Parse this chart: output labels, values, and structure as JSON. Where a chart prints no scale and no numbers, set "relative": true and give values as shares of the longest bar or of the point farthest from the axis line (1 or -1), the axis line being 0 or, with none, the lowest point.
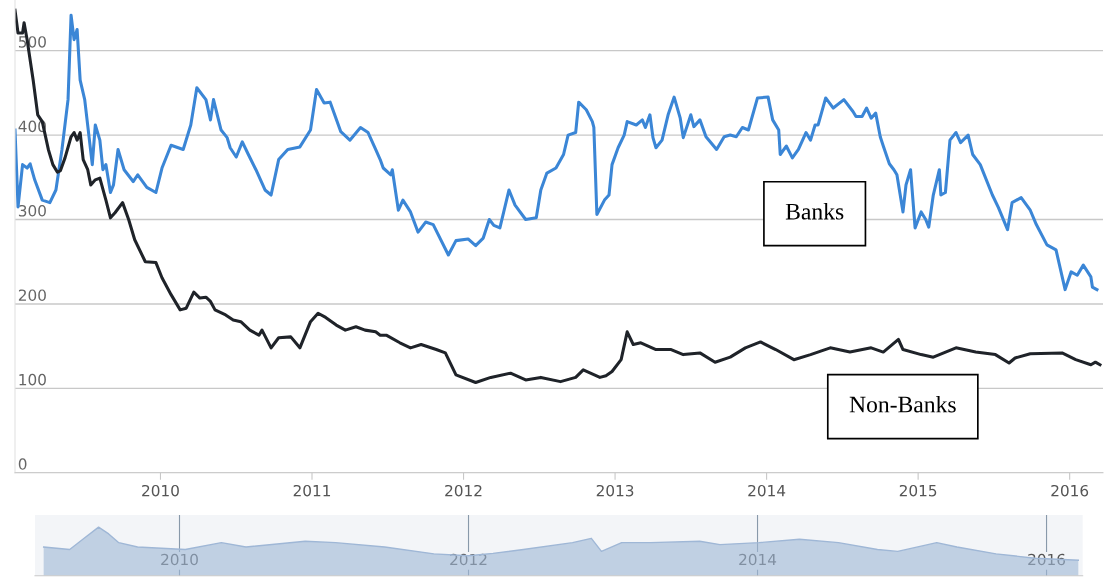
{
  "chart_data": [
    {
      "type": "line",
      "xlim": [
        2009.04,
        2016.22
      ],
      "xticks": [
        2010,
        2011,
        2012,
        2013,
        2014,
        2015,
        2016
      ],
      "ylim": [
        0,
        560
      ],
      "yticks": [
        0,
        100,
        200,
        300,
        400,
        500
      ],
      "grid": "y",
      "series": [
        {
          "name": "Banks",
          "color": "#3b86d6",
          "x": [
            2009.04,
            2009.06,
            2009.09,
            2009.12,
            2009.14,
            2009.17,
            2009.22,
            2009.27,
            2009.31,
            2009.35,
            2009.39,
            2009.41,
            2009.43,
            2009.45,
            2009.47,
            2009.5,
            2009.55,
            2009.57,
            2009.6,
            2009.62,
            2009.64,
            2009.67,
            2009.69,
            2009.72,
            2009.76,
            2009.82,
            2009.85,
            2009.91,
            2009.97,
            2010.01,
            2010.07,
            2010.15,
            2010.2,
            2010.24,
            2010.3,
            2010.33,
            2010.35,
            2010.4,
            2010.44,
            2010.46,
            2010.5,
            2010.54,
            2010.58,
            2010.63,
            2010.69,
            2010.73,
            2010.78,
            2010.84,
            2010.92,
            2010.99,
            2011.03,
            2011.08,
            2011.12,
            2011.19,
            2011.25,
            2011.32,
            2011.37,
            2011.42,
            2011.45,
            2011.47,
            2011.52,
            2011.53,
            2011.57,
            2011.6,
            2011.65,
            2011.7,
            2011.75,
            2011.8,
            2011.9,
            2011.95,
            2012.03,
            2012.08,
            2012.13,
            2012.17,
            2012.2,
            2012.24,
            2012.3,
            2012.34,
            2012.41,
            2012.48,
            2012.51,
            2012.55,
            2012.61,
            2012.66,
            2012.69,
            2012.74,
            2012.76,
            2012.81,
            2012.85,
            2012.86,
            2012.88,
            2012.93,
            2012.96,
            2012.98,
            2013.02,
            2013.06,
            2013.08,
            2013.14,
            2013.18,
            2013.2,
            2013.23,
            2013.25,
            2013.27,
            2013.31,
            2013.35,
            2013.39,
            2013.43,
            2013.45,
            2013.5,
            2013.52,
            2013.56,
            2013.6,
            2013.67,
            2013.72,
            2013.76,
            2013.8,
            2013.84,
            2013.88,
            2013.94,
            2014.01,
            2014.04,
            2014.08,
            2014.09,
            2014.13,
            2014.17,
            2014.21,
            2014.26,
            2014.29,
            2014.32,
            2014.34,
            2014.39,
            2014.44,
            2014.51,
            2014.57,
            2014.59,
            2014.63,
            2014.66,
            2014.69,
            2014.72,
            2014.75,
            2014.77,
            2014.81,
            2014.84,
            2014.86,
            2014.9,
            2014.92,
            2014.95,
            2014.98,
            2015.02,
            2015.05,
            2015.07,
            2015.1,
            2015.14,
            2015.15,
            2015.18,
            2015.21,
            2015.25,
            2015.28,
            2015.33,
            2015.36,
            2015.41,
            2015.49,
            2015.53,
            2015.59,
            2015.62,
            2015.68,
            2015.74,
            2015.78,
            2015.85,
            2015.91,
            2015.97,
            2016.01,
            2016.05,
            2016.09,
            2016.14,
            2016.15,
            2016.18
          ],
          "values": [
            406,
            315,
            365,
            361,
            366,
            347,
            323,
            320,
            335,
            383,
            442,
            542,
            513,
            525,
            465,
            442,
            365,
            412,
            394,
            359,
            365,
            332,
            341,
            383,
            359,
            345,
            353,
            338,
            332,
            361,
            388,
            383,
            412,
            456,
            442,
            418,
            442,
            406,
            397,
            385,
            374,
            392,
            377,
            359,
            335,
            329,
            371,
            383,
            386,
            406,
            454,
            438,
            439,
            404,
            394,
            409,
            403,
            383,
            371,
            361,
            353,
            359,
            311,
            323,
            309,
            285,
            297,
            294,
            258,
            275,
            277,
            269,
            278,
            300,
            293,
            290,
            335,
            317,
            300,
            302,
            335,
            355,
            361,
            377,
            400,
            403,
            439,
            430,
            416,
            409,
            306,
            323,
            329,
            365,
            385,
            400,
            416,
            412,
            418,
            409,
            424,
            397,
            385,
            394,
            424,
            445,
            420,
            397,
            424,
            410,
            418,
            398,
            383,
            398,
            400,
            398,
            409,
            406,
            444,
            445,
            418,
            406,
            377,
            387,
            373,
            383,
            403,
            394,
            412,
            412,
            444,
            432,
            442,
            428,
            422,
            422,
            432,
            420,
            426,
            398,
            387,
            366,
            359,
            353,
            309,
            341,
            359,
            290,
            309,
            300,
            291,
            329,
            359,
            329,
            332,
            394,
            403,
            391,
            400,
            377,
            365,
            329,
            314,
            288,
            320,
            326,
            311,
            294,
            270,
            264,
            217,
            238,
            234,
            246,
            232,
            220,
            217
          ]
        },
        {
          "name": "Non-Banks",
          "color": "#1f2329",
          "x": [
            2009.04,
            2009.06,
            2009.09,
            2009.1,
            2009.12,
            2009.16,
            2009.19,
            2009.22,
            2009.26,
            2009.29,
            2009.32,
            2009.34,
            2009.37,
            2009.41,
            2009.43,
            2009.45,
            2009.47,
            2009.49,
            2009.52,
            2009.54,
            2009.57,
            2009.6,
            2009.64,
            2009.67,
            2009.7,
            2009.75,
            2009.79,
            2009.83,
            2009.9,
            2009.97,
            2010.01,
            2010.07,
            2010.13,
            2010.17,
            2010.22,
            2010.26,
            2010.3,
            2010.33,
            2010.36,
            2010.43,
            2010.48,
            2010.53,
            2010.59,
            2010.65,
            2010.67,
            2010.73,
            2010.78,
            2010.86,
            2010.92,
            2010.99,
            2011.04,
            2011.09,
            2011.16,
            2011.22,
            2011.29,
            2011.35,
            2011.42,
            2011.45,
            2011.49,
            2011.58,
            2011.65,
            2011.72,
            2011.82,
            2011.88,
            2011.95,
            2012.08,
            2012.18,
            2012.31,
            2012.41,
            2012.51,
            2012.64,
            2012.74,
            2012.79,
            2012.9,
            2012.94,
            2012.98,
            2013.04,
            2013.08,
            2013.12,
            2013.17,
            2013.27,
            2013.37,
            2013.45,
            2013.56,
            2013.66,
            2013.76,
            2013.86,
            2013.96,
            2014.06,
            2014.18,
            2014.29,
            2014.42,
            2014.55,
            2014.69,
            2014.77,
            2014.87,
            2014.9,
            2015.02,
            2015.1,
            2015.25,
            2015.38,
            2015.51,
            2015.6,
            2015.64,
            2015.74,
            2015.95,
            2016.04,
            2016.14,
            2016.17,
            2016.2
          ],
          "values": [
            548,
            521,
            521,
            533,
            513,
            465,
            424,
            416,
            383,
            365,
            356,
            358,
            373,
            398,
            403,
            394,
            403,
            371,
            359,
            341,
            347,
            349,
            323,
            302,
            308,
            320,
            300,
            276,
            250,
            249,
            231,
            211,
            193,
            195,
            214,
            207,
            208,
            203,
            193,
            187,
            181,
            179,
            169,
            163,
            169,
            148,
            160,
            161,
            148,
            179,
            189,
            184,
            175,
            169,
            173,
            169,
            167,
            163,
            163,
            154,
            148,
            152,
            146,
            142,
            116,
            107,
            113,
            118,
            110,
            113,
            108,
            113,
            122,
            113,
            115,
            120,
            134,
            167,
            152,
            154,
            146,
            146,
            140,
            142,
            131,
            137,
            148,
            155,
            146,
            134,
            140,
            148,
            143,
            148,
            143,
            158,
            146,
            140,
            137,
            148,
            143,
            140,
            130,
            136,
            141,
            142,
            134,
            128,
            131,
            128
          ]
        }
      ]
    },
    {
      "type": "area",
      "relative": true,
      "xlim": [
        2009.0,
        2016.25
      ],
      "xticks": [
        2010,
        2012,
        2014,
        2016
      ],
      "grid": "x",
      "tick_labels": "x",
      "series": [
        {
          "color": "#9fb7d6",
          "x": [
            2009.06,
            2009.24,
            2009.34,
            2009.44,
            2009.51,
            2009.58,
            2009.71,
            2010.04,
            2010.29,
            2010.46,
            2010.87,
            2011.08,
            2011.42,
            2011.76,
            2012.0,
            2012.17,
            2012.38,
            2012.72,
            2012.85,
            2012.92,
            2013.06,
            2013.26,
            2013.6,
            2013.74,
            2014.01,
            2014.29,
            2014.56,
            2014.83,
            2014.97,
            2015.24,
            2015.38,
            2015.65,
            2015.92,
            2016.22
          ],
          "values": [
            0.59,
            0.54,
            0.77,
            1,
            0.86,
            0.68,
            0.59,
            0.54,
            0.68,
            0.59,
            0.71,
            0.68,
            0.59,
            0.45,
            0.41,
            0.46,
            0.54,
            0.68,
            0.77,
            0.5,
            0.68,
            0.68,
            0.71,
            0.64,
            0.68,
            0.75,
            0.68,
            0.54,
            0.5,
            0.68,
            0.59,
            0.45,
            0.36,
            0.32
          ]
        }
      ]
    }
  ]
}
